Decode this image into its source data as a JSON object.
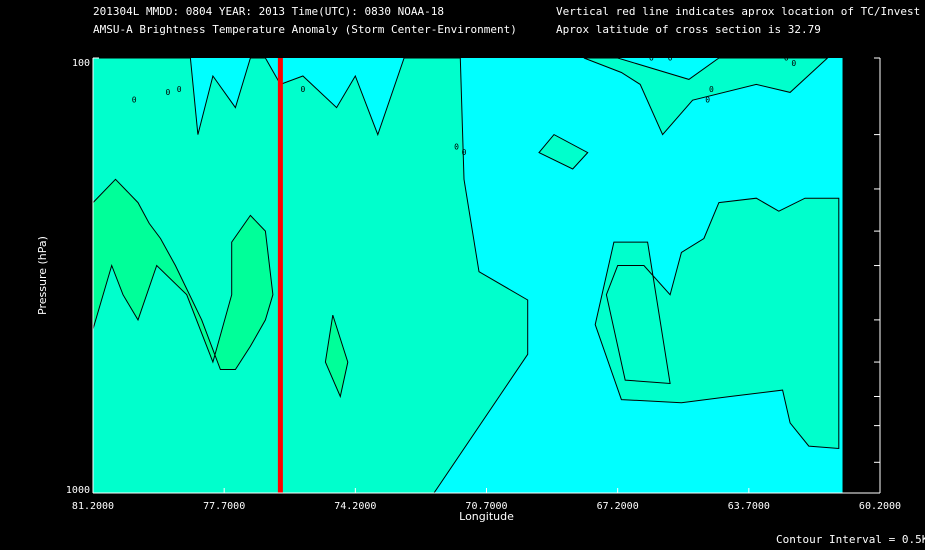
{
  "header": {
    "line1_left": "201304L  MMDD: 0804 YEAR: 2013 Time(UTC): 0830 NOAA-18",
    "line2_left": "AMSU-A Brightness Temperature Anomaly (Storm Center-Environment)",
    "line1_right": "Vertical red line indicates aprox location of TC/Invest",
    "line2_right": "Aprox latitude of cross section is 32.79"
  },
  "footer": {
    "contour_interval": "Contour Interval = 0.5K"
  },
  "colors": {
    "background": "#000000",
    "field_low": "#00ffff",
    "field_mid": "#00ffcc",
    "field_high": "#00ff99",
    "contour_line": "#000000",
    "tc_line": "#ff0000"
  },
  "chart_data": {
    "type": "heatmap",
    "title": "AMSU-A Brightness Temperature Anomaly (Storm Center-Environment)",
    "xlabel": "Longitude",
    "ylabel": "Pressure (hPa)",
    "x_reversed": true,
    "xlim": [
      81.2,
      60.2
    ],
    "ylim": [
      100,
      1000
    ],
    "y_scale": "log",
    "y_reversed": true,
    "x_ticks": [
      "81.2000",
      "77.7000",
      "74.2000",
      "70.7000",
      "67.2000",
      "63.7000",
      "60.2000"
    ],
    "x_tick_values": [
      81.2,
      77.7,
      74.2,
      70.7,
      67.2,
      63.7,
      60.2
    ],
    "y_tick_labels": [
      {
        "value": 1000,
        "label": "1000"
      },
      {
        "value": 100,
        "label": "100"
      }
    ],
    "y_minor_ticks": [
      150,
      200,
      250,
      300,
      400,
      500,
      600,
      700,
      850
    ],
    "contour_label": "0",
    "contour_interval_k": 0.5,
    "tc_longitude": 76.2,
    "data_right_edge_lon": 61.2,
    "series": [
      {
        "level": "mid",
        "polygons": [
          [
            [
              81.2,
              100
            ],
            [
              78.6,
              100
            ],
            [
              78.4,
              150
            ],
            [
              78.0,
              110
            ],
            [
              77.4,
              130
            ],
            [
              77.0,
              100
            ],
            [
              76.6,
              100
            ],
            [
              76.2,
              115
            ],
            [
              75.6,
              110
            ],
            [
              74.7,
              130
            ],
            [
              74.2,
              110
            ],
            [
              73.6,
              150
            ],
            [
              72.9,
              100
            ],
            [
              71.4,
              100
            ],
            [
              71.3,
              190
            ],
            [
              70.9,
              310
            ],
            [
              69.6,
              360
            ],
            [
              69.6,
              480
            ],
            [
              72.1,
              1000
            ],
            [
              81.2,
              1000
            ]
          ],
          [
            [
              69.3,
              165
            ],
            [
              68.9,
              150
            ],
            [
              68.0,
              165
            ],
            [
              68.4,
              180
            ],
            [
              69.3,
              165
            ]
          ],
          [
            [
              68.1,
              100
            ],
            [
              67.2,
              100
            ],
            [
              65.3,
              112
            ],
            [
              64.5,
              100
            ],
            [
              63.3,
              100
            ],
            [
              61.6,
              100
            ],
            [
              62.6,
              120
            ],
            [
              63.5,
              115
            ],
            [
              65.2,
              125
            ],
            [
              66.0,
              150
            ],
            [
              66.6,
              115
            ],
            [
              67.1,
              108
            ],
            [
              68.1,
              100
            ]
          ],
          [
            [
              66.4,
              265
            ],
            [
              67.3,
              265
            ],
            [
              67.8,
              410
            ],
            [
              67.1,
              610
            ],
            [
              65.5,
              620
            ],
            [
              64.2,
              600
            ],
            [
              62.8,
              580
            ],
            [
              62.6,
              690
            ],
            [
              62.1,
              780
            ],
            [
              61.3,
              790
            ],
            [
              61.3,
              210
            ],
            [
              62.2,
              210
            ],
            [
              62.9,
              225
            ],
            [
              63.5,
              210
            ],
            [
              64.5,
              215
            ],
            [
              64.9,
              260
            ],
            [
              65.5,
              280
            ],
            [
              65.8,
              350
            ],
            [
              66.5,
              300
            ],
            [
              67.2,
              300
            ],
            [
              67.5,
              350
            ],
            [
              67.0,
              550
            ],
            [
              65.8,
              560
            ],
            [
              66.4,
              265
            ]
          ]
        ]
      },
      {
        "level": "high",
        "polygons": [
          [
            [
              81.2,
              215
            ],
            [
              80.6,
              190
            ],
            [
              80.0,
              215
            ],
            [
              79.7,
              240
            ],
            [
              79.4,
              260
            ],
            [
              79.0,
              300
            ],
            [
              78.3,
              400
            ],
            [
              77.8,
              520
            ],
            [
              77.4,
              520
            ],
            [
              77.0,
              460
            ],
            [
              76.6,
              400
            ],
            [
              76.4,
              350
            ],
            [
              76.6,
              250
            ],
            [
              77.0,
              230
            ],
            [
              77.5,
              265
            ],
            [
              77.5,
              350
            ],
            [
              78.0,
              500
            ],
            [
              78.7,
              350
            ],
            [
              79.5,
              300
            ],
            [
              80.0,
              400
            ],
            [
              80.4,
              350
            ],
            [
              80.7,
              300
            ],
            [
              81.2,
              420
            ]
          ],
          [
            [
              74.8,
              390
            ],
            [
              75.0,
              500
            ],
            [
              74.6,
              600
            ],
            [
              74.4,
              500
            ],
            [
              74.8,
              390
            ]
          ]
        ]
      }
    ]
  }
}
